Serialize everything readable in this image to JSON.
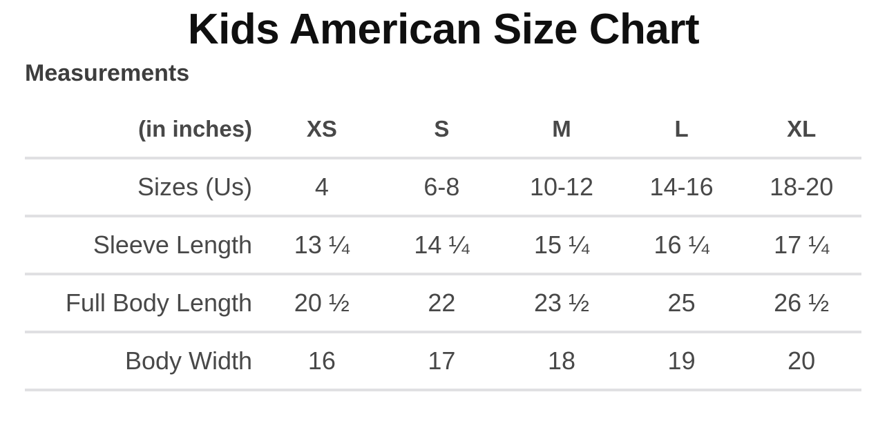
{
  "page": {
    "title": "Kids American Size Chart",
    "section_heading": "Measurements"
  },
  "table": {
    "unit_label": "(in inches)",
    "columns": [
      "XS",
      "S",
      "M",
      "L",
      "XL"
    ],
    "rows": [
      {
        "label": "Sizes (Us)",
        "values": [
          "4",
          "6-8",
          "10-12",
          "14-16",
          "18-20"
        ]
      },
      {
        "label": "Sleeve Length",
        "values": [
          "13 ¼",
          "14 ¼",
          "15 ¼",
          "16 ¼",
          "17 ¼"
        ]
      },
      {
        "label": "Full Body Length",
        "values": [
          "20 ½",
          "22",
          "23 ½",
          "25",
          "26 ½"
        ]
      },
      {
        "label": "Body Width",
        "values": [
          "16",
          "17",
          "18",
          "19",
          "20"
        ]
      }
    ]
  },
  "colors": {
    "background": "#ffffff",
    "title": "#0f0f0f",
    "heading": "#3d3d3d",
    "text": "#484848",
    "divider": "#e0e0e2"
  },
  "chart_data": {
    "type": "table",
    "title": "Kids American Size Chart",
    "subtitle": "Measurements",
    "unit": "inches",
    "columns": [
      "(in inches)",
      "XS",
      "S",
      "M",
      "L",
      "XL"
    ],
    "rows": [
      [
        "Sizes (Us)",
        "4",
        "6-8",
        "10-12",
        "14-16",
        "18-20"
      ],
      [
        "Sleeve Length",
        "13 ¼",
        "14 ¼",
        "15 ¼",
        "16 ¼",
        "17 ¼"
      ],
      [
        "Full Body Length",
        "20 ½",
        "22",
        "23 ½",
        "25",
        "26 ½"
      ],
      [
        "Body Width",
        "16",
        "17",
        "18",
        "19",
        "20"
      ]
    ],
    "numeric_rows": {
      "sleeve_length": [
        13.25,
        14.25,
        15.25,
        16.25,
        17.25
      ],
      "full_body_length": [
        20.5,
        22,
        23.5,
        25,
        26.5
      ],
      "body_width": [
        16,
        17,
        18,
        19,
        20
      ]
    }
  }
}
